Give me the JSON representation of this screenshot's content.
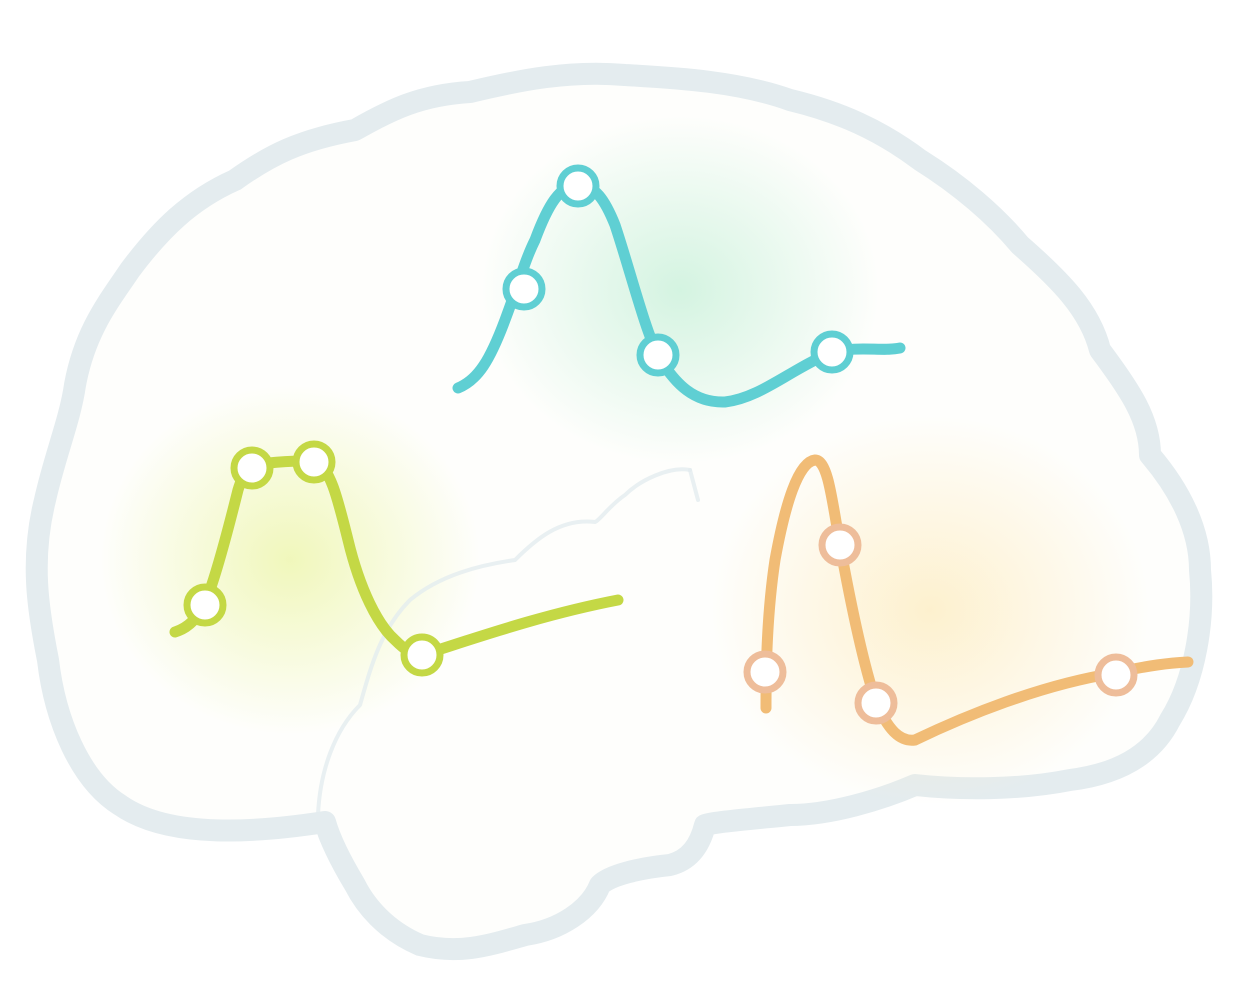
{
  "colors": {
    "background": "#ffffff",
    "brain_outline": "#e4ecef",
    "brain_fill": "#fefefc",
    "teal": "#5fcfd3",
    "green": "#c4d845",
    "orange": "#f1bc76",
    "orange_marker": "#eebd9a",
    "glow_teal": "#c6f0d8",
    "glow_green": "#eef6b0",
    "glow_orange": "#fdeec6",
    "marker_fill": "#ffffff"
  },
  "diagram": {
    "subject": "brain-with-three-waveforms",
    "waveforms": [
      {
        "name": "teal-waveform",
        "color_key": "teal",
        "marker_count": 4
      },
      {
        "name": "green-waveform",
        "color_key": "green",
        "marker_count": 4
      },
      {
        "name": "orange-waveform",
        "color_key": "orange",
        "marker_count": 4
      }
    ]
  }
}
